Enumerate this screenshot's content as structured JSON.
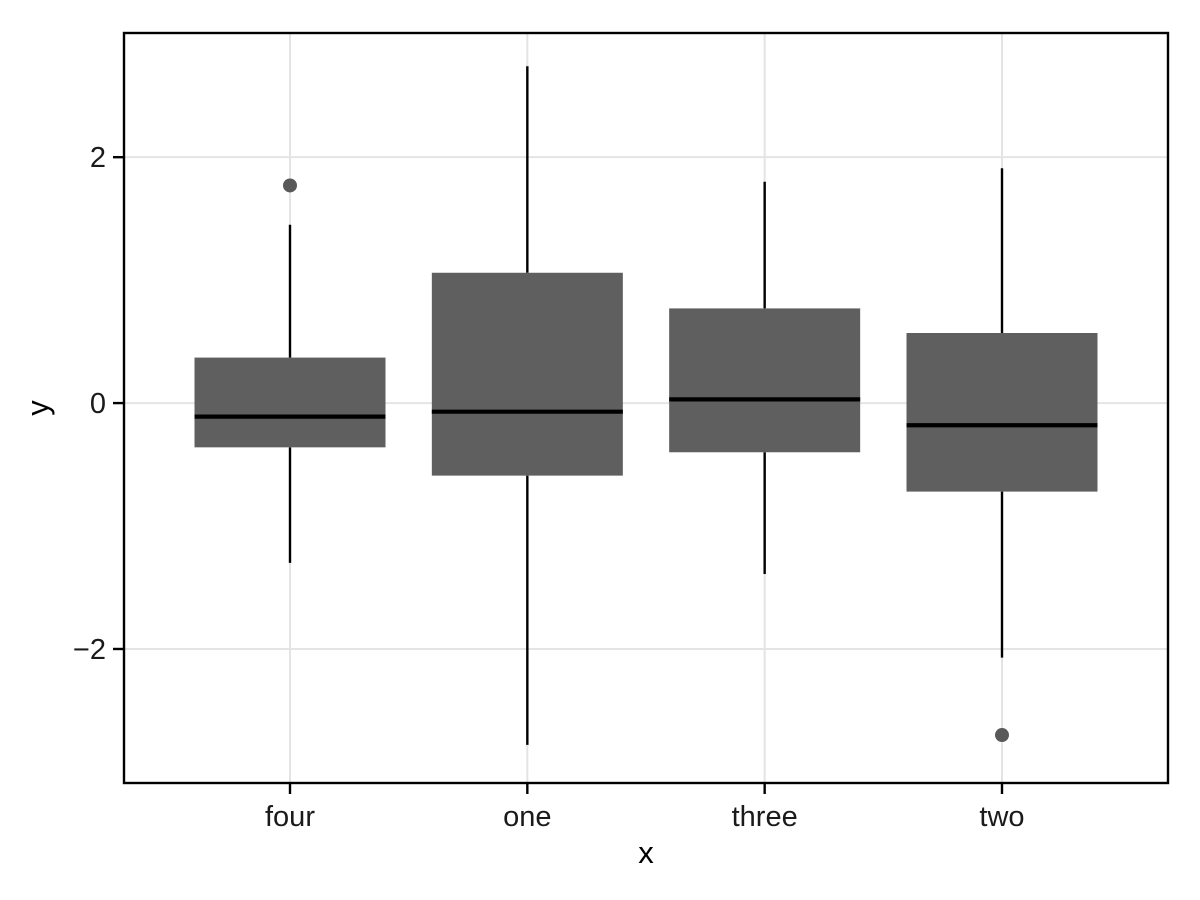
{
  "chart_data": {
    "type": "boxplot",
    "title": "",
    "xlabel": "x",
    "ylabel": "y",
    "categories": [
      "four",
      "one",
      "three",
      "two"
    ],
    "yticks": [
      -2,
      0,
      2
    ],
    "ytick_labels": [
      "−2",
      "0",
      "2"
    ],
    "ylim": [
      -3.09,
      3.01
    ],
    "grid": true,
    "legend": "none",
    "series": [
      {
        "category": "four",
        "whisker_low": -1.3,
        "q1": -0.36,
        "median": -0.11,
        "q3": 0.37,
        "whisker_high": 1.45,
        "outliers": [
          1.77
        ]
      },
      {
        "category": "one",
        "whisker_low": -2.78,
        "q1": -0.59,
        "median": -0.07,
        "q3": 1.06,
        "whisker_high": 2.74,
        "outliers": []
      },
      {
        "category": "three",
        "whisker_low": -1.39,
        "q1": -0.4,
        "median": 0.03,
        "q3": 0.77,
        "whisker_high": 1.8,
        "outliers": []
      },
      {
        "category": "two",
        "whisker_low": -2.07,
        "q1": -0.72,
        "median": -0.18,
        "q3": 0.57,
        "whisker_high": 1.91,
        "outliers": [
          -2.7
        ]
      }
    ],
    "colors": {
      "box_fill": "#5f5f5f",
      "line": "#000000",
      "outlier_fill": "#595959",
      "grid": "#e4e4e4",
      "panel_border": "#000000",
      "tick_label": "#1a1a1a",
      "axis_title": "#000000",
      "background": "#ffffff"
    }
  }
}
